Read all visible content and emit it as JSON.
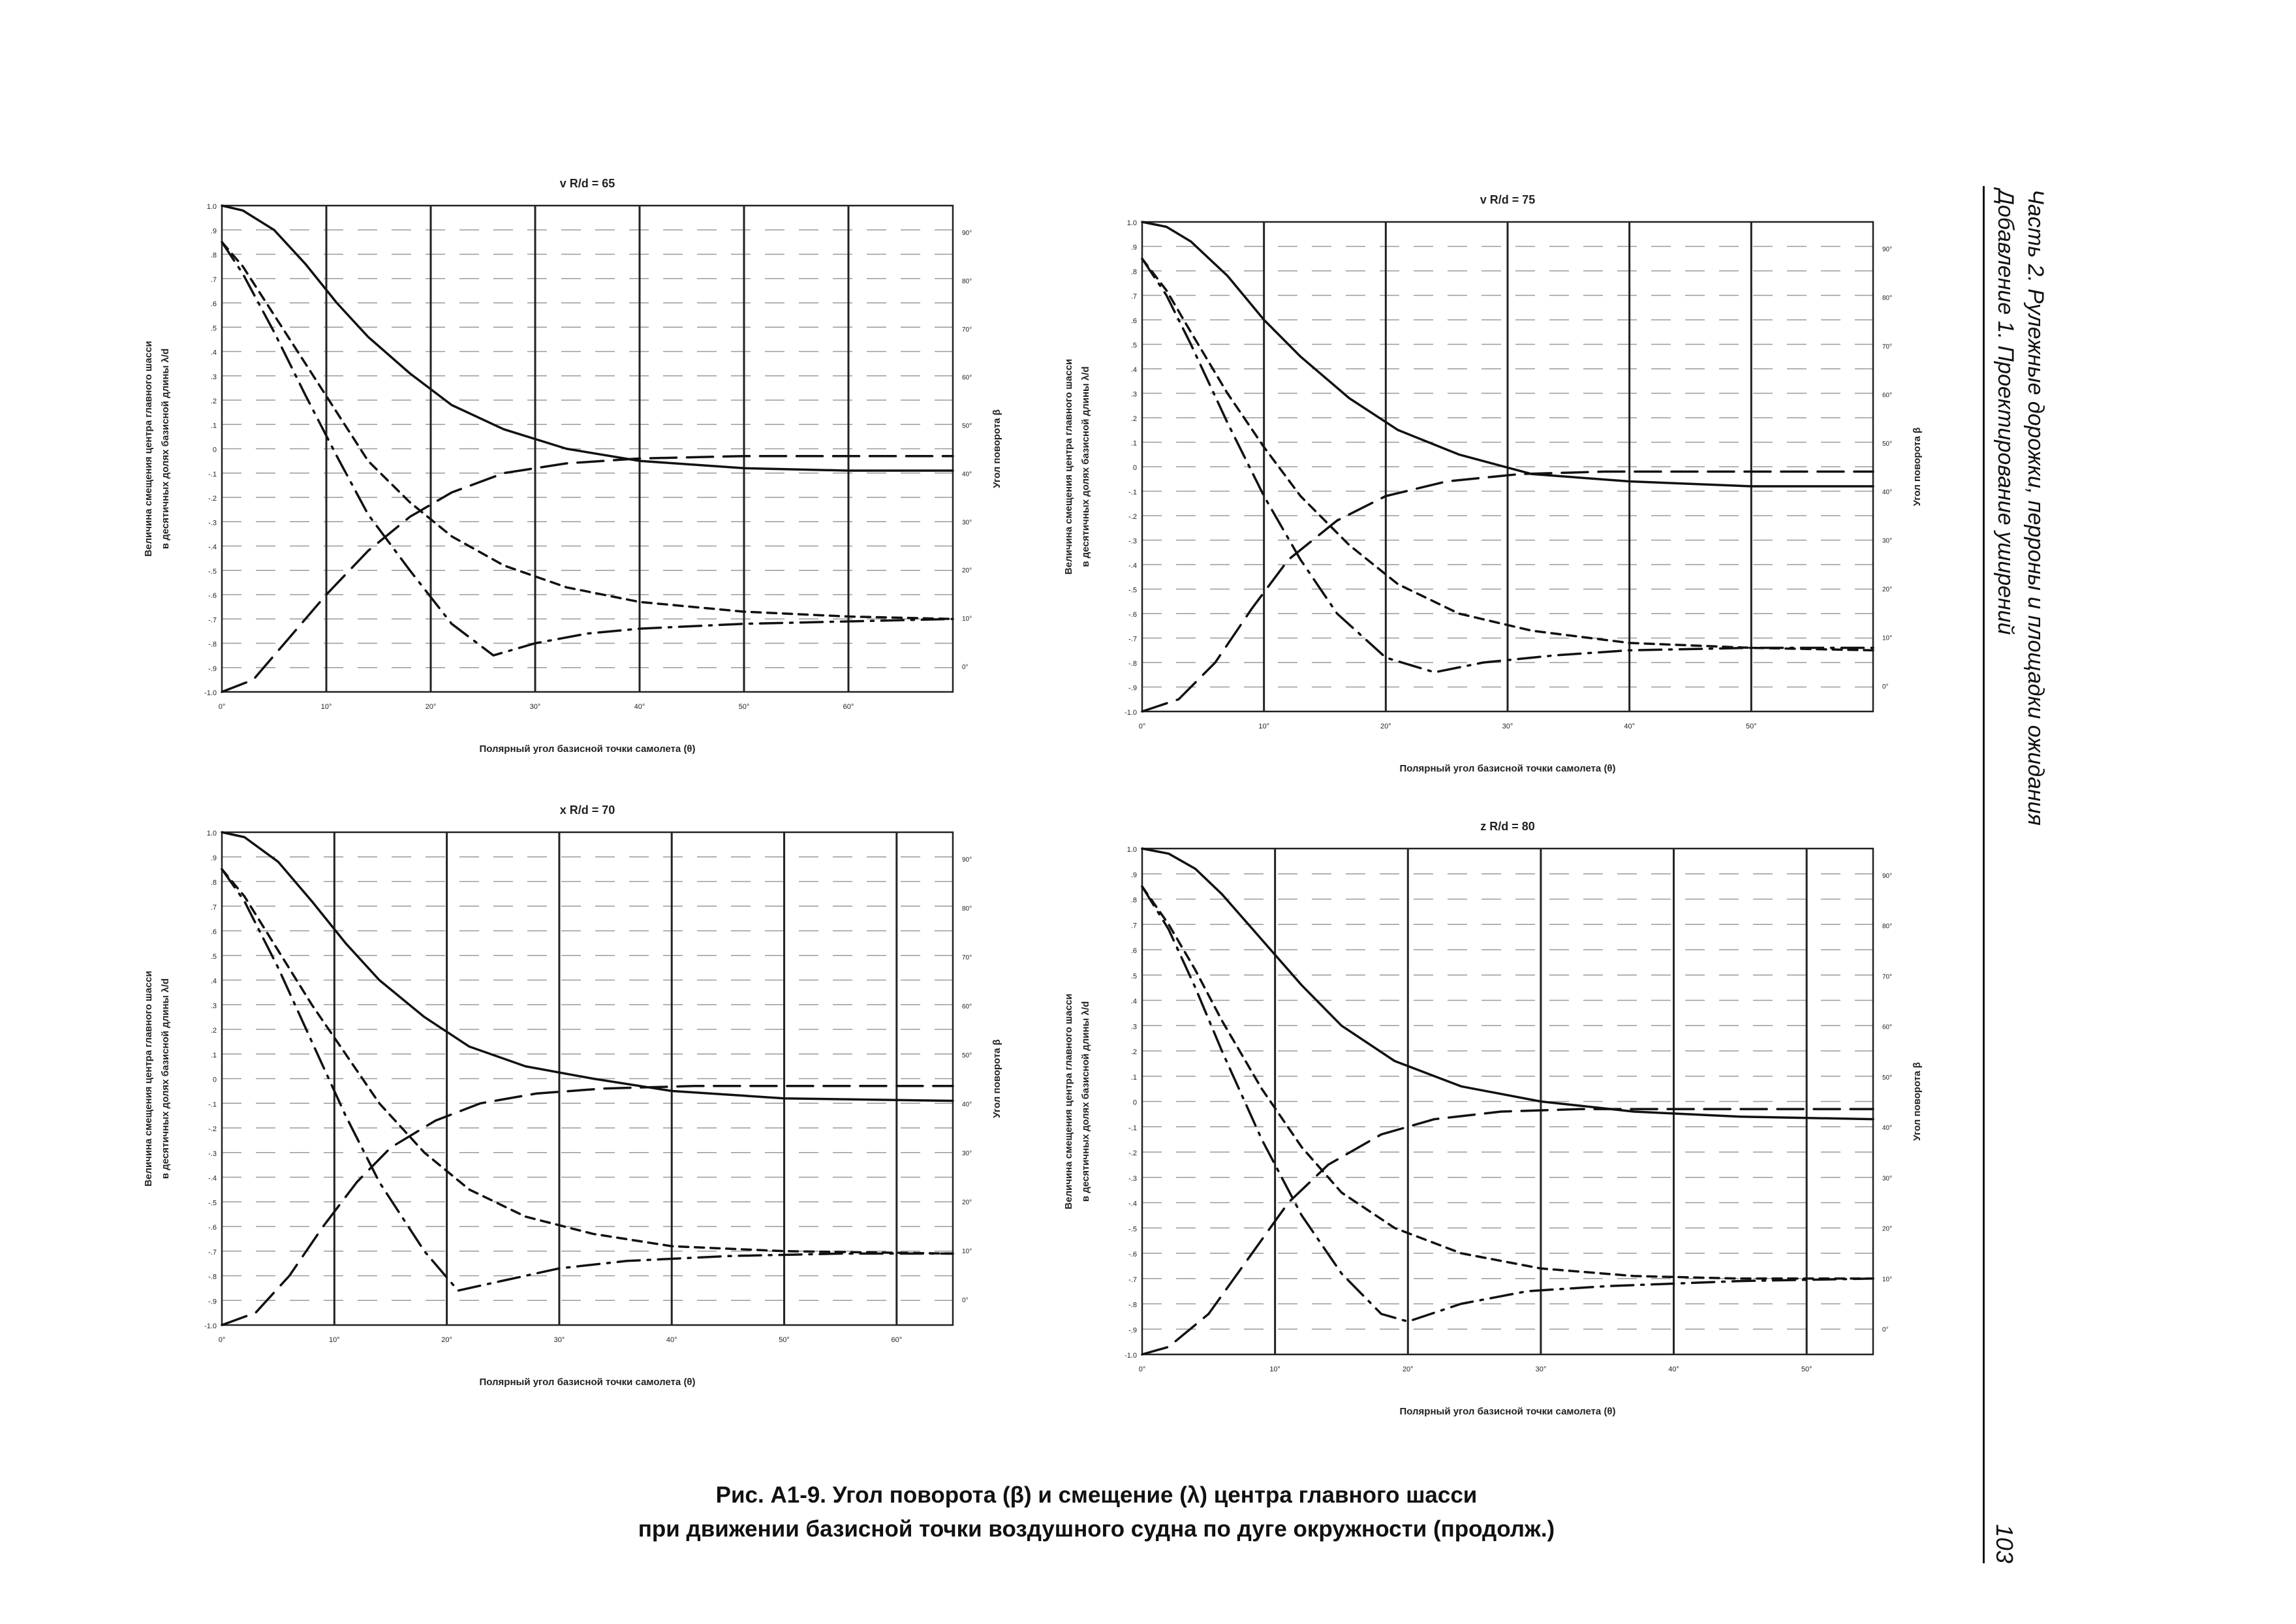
{
  "header": {
    "line1": "Часть 2. Рулежные дорожки, перроны и площадки ожидания",
    "line2": "Добавление 1. Проектирование уширений",
    "page_number": "103"
  },
  "caption": {
    "line1": "Рис. А1-9.    Угол поворота (β) и смещение (λ) центра главного шасси",
    "line2": "при движении базисной точки воздушного судна по дуге окружности (продолж.)"
  },
  "chart_data": [
    {
      "type": "line",
      "title": "v R/d = 65",
      "xlabel": "Полярный угол базисной точки самолета (θ)",
      "ylabel_line1": "Величина смещения центра главного шасси",
      "ylabel_line2": "в десятичных долях базисной длины λ/d",
      "y2label": "Угол поворота β",
      "xlim": [
        0,
        70
      ],
      "ylim": [
        -1.0,
        1.0
      ],
      "x_ticks": [
        "0°",
        "10°",
        "20°",
        "30°",
        "40°",
        "50°",
        "60°"
      ],
      "y_ticks": [
        "1.0",
        ".9",
        ".8",
        ".7",
        ".6",
        ".5",
        ".4",
        ".3",
        ".2",
        ".1",
        "0",
        "-.1",
        "-.2",
        "-.3",
        "-.4",
        "-.5",
        "-.6",
        "-.7",
        "-.8",
        "-.9",
        "-1.0"
      ],
      "y2_ticks": [
        "90°",
        "80°",
        "70°",
        "60°",
        "50°",
        "40°",
        "30°",
        "20°",
        "10°",
        "0°"
      ],
      "series": [
        {
          "name": "λ solid",
          "style": "solid",
          "x": [
            0,
            2,
            5,
            8,
            11,
            14,
            18,
            22,
            27,
            33,
            40,
            50,
            60,
            70
          ],
          "y": [
            1.0,
            0.98,
            0.9,
            0.76,
            0.6,
            0.46,
            0.31,
            0.18,
            0.08,
            0.0,
            -0.05,
            -0.08,
            -0.09,
            -0.09
          ]
        },
        {
          "name": "short dashed",
          "style": "dashed-short",
          "x": [
            0,
            2,
            5,
            8,
            11,
            14,
            18,
            22,
            27,
            33,
            40,
            50,
            60,
            70
          ],
          "y": [
            0.85,
            0.75,
            0.55,
            0.35,
            0.15,
            -0.05,
            -0.22,
            -0.36,
            -0.48,
            -0.57,
            -0.63,
            -0.67,
            -0.69,
            -0.7
          ]
        },
        {
          "name": "dash-dot",
          "style": "dash-dot",
          "x": [
            0,
            2,
            5,
            8,
            11,
            14,
            18,
            22,
            26,
            30,
            35,
            40,
            50,
            60,
            70
          ],
          "y": [
            0.85,
            0.72,
            0.48,
            0.22,
            -0.03,
            -0.27,
            -0.5,
            -0.72,
            -0.85,
            -0.8,
            -0.76,
            -0.74,
            -0.72,
            -0.71,
            -0.7
          ]
        },
        {
          "name": "long dashed",
          "style": "dashed-long",
          "x": [
            0,
            3,
            6,
            10,
            14,
            18,
            22,
            27,
            33,
            40,
            50,
            60,
            70
          ],
          "y": [
            -1.0,
            -0.95,
            -0.8,
            -0.6,
            -0.42,
            -0.28,
            -0.18,
            -0.1,
            -0.06,
            -0.04,
            -0.03,
            -0.03,
            -0.03
          ]
        }
      ]
    },
    {
      "type": "line",
      "title": "v R/d = 75",
      "xlabel": "Полярный угол базисной точки самолета (θ)",
      "ylabel_line1": "Величина смещения центра главного шасси",
      "ylabel_line2": "в десятичных долях базисной длины λ/d",
      "y2label": "Угол поворота β",
      "xlim": [
        0,
        60
      ],
      "ylim": [
        -1.0,
        1.0
      ],
      "x_ticks": [
        "0°",
        "10°",
        "20°",
        "30°",
        "40°",
        "50°"
      ],
      "y_ticks": [
        "1.0",
        ".9",
        ".8",
        ".7",
        ".6",
        ".5",
        ".4",
        ".3",
        ".2",
        ".1",
        "0",
        "-.1",
        "-.2",
        "-.3",
        "-.4",
        "-.5",
        "-.6",
        "-.7",
        "-.8",
        "-.9",
        "-1.0"
      ],
      "y2_ticks": [
        "90°",
        "80°",
        "70°",
        "60°",
        "50°",
        "40°",
        "30°",
        "20°",
        "10°",
        "0°"
      ],
      "series": [
        {
          "name": "λ solid",
          "style": "solid",
          "x": [
            0,
            2,
            4,
            7,
            10,
            13,
            17,
            21,
            26,
            32,
            40,
            50,
            60
          ],
          "y": [
            1.0,
            0.98,
            0.92,
            0.78,
            0.6,
            0.45,
            0.28,
            0.15,
            0.05,
            -0.03,
            -0.06,
            -0.08,
            -0.08
          ]
        },
        {
          "name": "short dashed",
          "style": "dashed-short",
          "x": [
            0,
            2,
            4,
            7,
            10,
            13,
            17,
            21,
            26,
            32,
            40,
            50,
            60
          ],
          "y": [
            0.85,
            0.72,
            0.55,
            0.3,
            0.08,
            -0.12,
            -0.32,
            -0.48,
            -0.6,
            -0.67,
            -0.72,
            -0.74,
            -0.75
          ]
        },
        {
          "name": "dash-dot",
          "style": "dash-dot",
          "x": [
            0,
            2,
            4,
            7,
            10,
            13,
            16,
            20,
            24,
            28,
            34,
            40,
            50,
            60
          ],
          "y": [
            0.85,
            0.7,
            0.5,
            0.18,
            -0.12,
            -0.38,
            -0.6,
            -0.78,
            -0.84,
            -0.8,
            -0.77,
            -0.75,
            -0.74,
            -0.74
          ]
        },
        {
          "name": "long dashed",
          "style": "dashed-long",
          "x": [
            0,
            3,
            6,
            9,
            12,
            16,
            20,
            25,
            31,
            38,
            46,
            60
          ],
          "y": [
            -1.0,
            -0.95,
            -0.8,
            -0.58,
            -0.38,
            -0.22,
            -0.12,
            -0.06,
            -0.03,
            -0.02,
            -0.02,
            -0.02
          ]
        }
      ]
    },
    {
      "type": "line",
      "title": "x R/d = 70",
      "xlabel": "Полярный угол базисной точки самолета (θ)",
      "ylabel_line1": "Величина смещения центра главного шасси",
      "ylabel_line2": "в десятичных долях базисной длины λ/d",
      "y2label": "Угол поворота β",
      "xlim": [
        0,
        65
      ],
      "ylim": [
        -1.0,
        1.0
      ],
      "x_ticks": [
        "0°",
        "10°",
        "20°",
        "30°",
        "40°",
        "50°",
        "60°"
      ],
      "y_ticks": [
        "1.0",
        ".9",
        ".8",
        ".7",
        ".6",
        ".5",
        ".4",
        ".3",
        ".2",
        ".1",
        "0",
        "-.1",
        "-.2",
        "-.3",
        "-.4",
        "-.5",
        "-.6",
        "-.7",
        "-.8",
        "-.9",
        "-1.0"
      ],
      "y2_ticks": [
        "90°",
        "80°",
        "70°",
        "60°",
        "50°",
        "40°",
        "30°",
        "20°",
        "10°",
        "0°"
      ],
      "series": [
        {
          "name": "λ solid",
          "style": "solid",
          "x": [
            0,
            2,
            5,
            8,
            11,
            14,
            18,
            22,
            27,
            33,
            40,
            50,
            65
          ],
          "y": [
            1.0,
            0.98,
            0.88,
            0.72,
            0.55,
            0.4,
            0.25,
            0.13,
            0.05,
            0.0,
            -0.05,
            -0.08,
            -0.09
          ]
        },
        {
          "name": "short dashed",
          "style": "dashed-short",
          "x": [
            0,
            2,
            5,
            8,
            11,
            14,
            18,
            22,
            27,
            33,
            40,
            50,
            65
          ],
          "y": [
            0.85,
            0.74,
            0.52,
            0.3,
            0.1,
            -0.1,
            -0.3,
            -0.45,
            -0.56,
            -0.63,
            -0.68,
            -0.7,
            -0.71
          ]
        },
        {
          "name": "dash-dot",
          "style": "dash-dot",
          "x": [
            0,
            2,
            5,
            8,
            11,
            14,
            18,
            21,
            25,
            30,
            36,
            45,
            55,
            65
          ],
          "y": [
            0.85,
            0.72,
            0.45,
            0.15,
            -0.15,
            -0.42,
            -0.7,
            -0.86,
            -0.82,
            -0.77,
            -0.74,
            -0.72,
            -0.71,
            -0.71
          ]
        },
        {
          "name": "long dashed",
          "style": "dashed-long",
          "x": [
            0,
            3,
            6,
            9,
            12,
            15,
            19,
            23,
            28,
            34,
            42,
            52,
            65
          ],
          "y": [
            -1.0,
            -0.95,
            -0.8,
            -0.6,
            -0.42,
            -0.28,
            -0.17,
            -0.1,
            -0.06,
            -0.04,
            -0.03,
            -0.03,
            -0.03
          ]
        }
      ]
    },
    {
      "type": "line",
      "title": "z R/d = 80",
      "xlabel": "Полярный угол базисной точки самолета (θ)",
      "ylabel_line1": "Величина смещения центра главного шасси",
      "ylabel_line2": "в десятичных долях базисной длины λ/d",
      "y2label": "Угол поворота β",
      "xlim": [
        0,
        55
      ],
      "ylim": [
        -1.0,
        1.0
      ],
      "x_ticks": [
        "0°",
        "10°",
        "20°",
        "30°",
        "40°",
        "50°"
      ],
      "y_ticks": [
        "1.0",
        ".9",
        ".8",
        ".7",
        ".6",
        ".5",
        ".4",
        ".3",
        ".2",
        ".1",
        "0",
        "-.1",
        "-.2",
        "-.3",
        "-.4",
        "-.5",
        "-.6",
        "-.7",
        "-.8",
        "-.9",
        "-1.0"
      ],
      "y2_ticks": [
        "90°",
        "80°",
        "70°",
        "60°",
        "50°",
        "40°",
        "30°",
        "20°",
        "10°",
        "0°"
      ],
      "series": [
        {
          "name": "λ solid",
          "style": "solid",
          "x": [
            0,
            2,
            4,
            6,
            9,
            12,
            15,
            19,
            24,
            30,
            37,
            45,
            55
          ],
          "y": [
            1.0,
            0.98,
            0.92,
            0.82,
            0.64,
            0.46,
            0.3,
            0.16,
            0.06,
            0.0,
            -0.04,
            -0.06,
            -0.07
          ]
        },
        {
          "name": "short dashed",
          "style": "dashed-short",
          "x": [
            0,
            2,
            4,
            6,
            9,
            12,
            15,
            19,
            24,
            30,
            37,
            45,
            55
          ],
          "y": [
            0.85,
            0.7,
            0.52,
            0.32,
            0.05,
            -0.18,
            -0.36,
            -0.5,
            -0.6,
            -0.66,
            -0.69,
            -0.7,
            -0.7
          ]
        },
        {
          "name": "dash-dot",
          "style": "dash-dot",
          "x": [
            0,
            2,
            4,
            6,
            9,
            12,
            15,
            18,
            20,
            24,
            29,
            35,
            45,
            55
          ],
          "y": [
            0.85,
            0.68,
            0.45,
            0.2,
            -0.15,
            -0.45,
            -0.68,
            -0.84,
            -0.87,
            -0.8,
            -0.75,
            -0.73,
            -0.71,
            -0.7
          ]
        },
        {
          "name": "long dashed",
          "style": "dashed-long",
          "x": [
            0,
            2,
            5,
            8,
            11,
            14,
            18,
            22,
            27,
            33,
            40,
            55
          ],
          "y": [
            -1.0,
            -0.97,
            -0.84,
            -0.62,
            -0.4,
            -0.25,
            -0.13,
            -0.07,
            -0.04,
            -0.03,
            -0.03,
            -0.03
          ]
        }
      ]
    }
  ]
}
